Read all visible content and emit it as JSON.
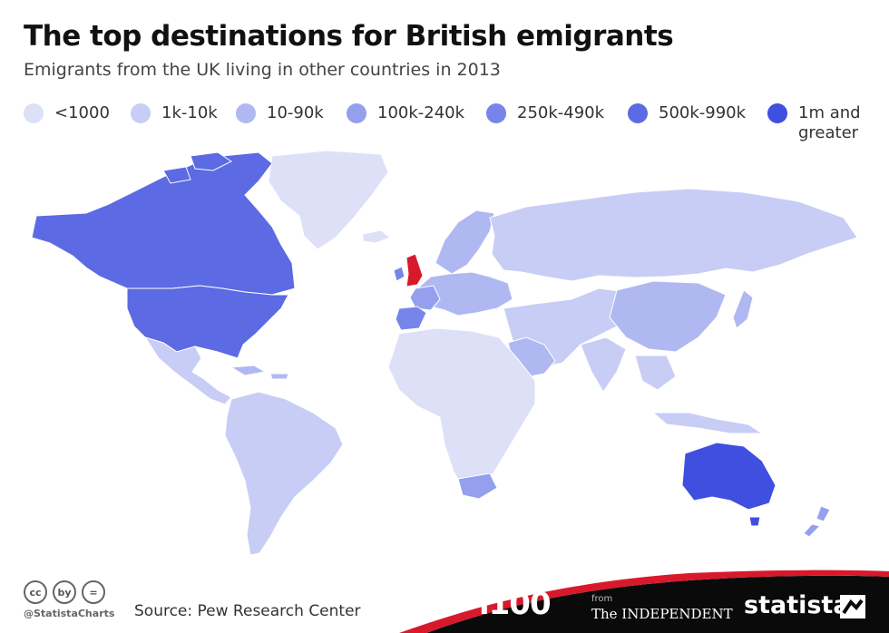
{
  "header": {
    "title": "The top destinations for British emigrants",
    "subtitle": "Emigrants from the UK living in other countries in 2013"
  },
  "legend": {
    "items": [
      {
        "label": "<1000",
        "color": "#dde0f7"
      },
      {
        "label": "1k-10k",
        "color": "#c8cdf5"
      },
      {
        "label": "10-90k",
        "color": "#b0b8f2"
      },
      {
        "label": "100k-240k",
        "color": "#949fee"
      },
      {
        "label": "250k-490k",
        "color": "#7785ea"
      },
      {
        "label": "500k-990k",
        "color": "#5c6ae4"
      },
      {
        "label": "1m and\ngreater",
        "color": "#3f4fdf"
      }
    ]
  },
  "map": {
    "highlight_country": "United Kingdom",
    "highlight_color": "#d7192b",
    "regions": [
      {
        "name": "Canada",
        "bin": "500k-990k"
      },
      {
        "name": "United States",
        "bin": "500k-990k"
      },
      {
        "name": "Australia",
        "bin": "1m and greater"
      },
      {
        "name": "Spain",
        "bin": "250k-490k"
      },
      {
        "name": "South Africa",
        "bin": "100k-240k"
      },
      {
        "name": "Ireland",
        "bin": "250k-490k"
      },
      {
        "name": "New Zealand",
        "bin": "100k-240k"
      },
      {
        "name": "France",
        "bin": "100k-240k"
      },
      {
        "name": "China",
        "bin": "10-90k"
      },
      {
        "name": "Greenland",
        "bin": "<1000"
      },
      {
        "name": "Russia",
        "bin": "1k-10k"
      }
    ]
  },
  "footer": {
    "cc_badges": [
      "cc",
      "by",
      "="
    ],
    "handle": "@StatistaCharts",
    "source": "Source: Pew Research Center",
    "brand_i100": "i100",
    "brand_from": "from",
    "brand_independent": "The INDEPENDENT",
    "brand_statista": "statista"
  }
}
